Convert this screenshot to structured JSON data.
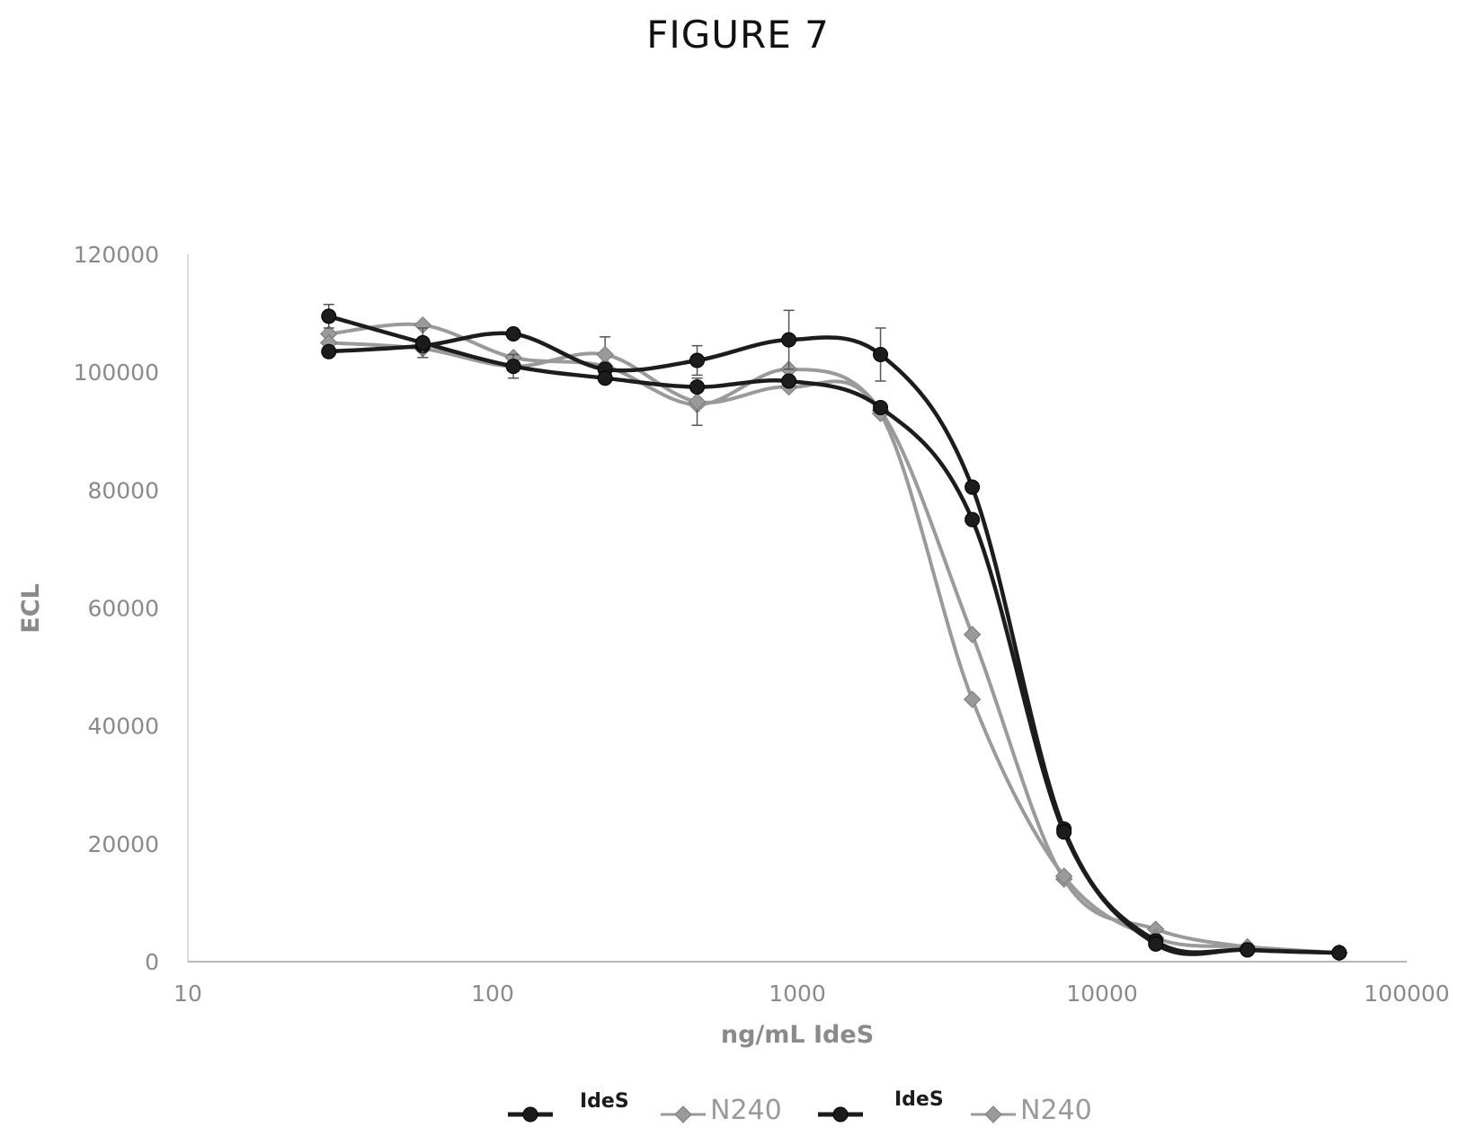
{
  "figure": {
    "title": "FIGURE 7"
  },
  "chart_data": {
    "type": "line",
    "title": "FIGURE 7",
    "xlabel": "ng/mL IdeS",
    "ylabel": "ECL",
    "xscale": "log",
    "xlim": [
      10,
      100000
    ],
    "ylim": [
      0,
      120000
    ],
    "x_ticks": [
      10,
      100,
      1000,
      10000,
      100000
    ],
    "x_tick_labels": [
      "10",
      "100",
      "1000",
      "10000",
      "100000"
    ],
    "y_ticks": [
      0,
      20000,
      40000,
      60000,
      80000,
      100000,
      120000
    ],
    "y_tick_labels": [
      "0",
      "20000",
      "40000",
      "60000",
      "80000",
      "100000",
      "120000"
    ],
    "grid": false,
    "legend_position": "bottom",
    "series": [
      {
        "name": "IdeS",
        "color": "#1c1c1c",
        "marker": "circle",
        "x": [
          29,
          59,
          117,
          234,
          469,
          938,
          1875,
          3750,
          7500,
          15000,
          30000,
          60000
        ],
        "y": [
          103500,
          104500,
          106500,
          100500,
          102000,
          105500,
          103000,
          80500,
          22500,
          3500,
          2000,
          1500
        ],
        "error": [
          0,
          0,
          0,
          0,
          2500,
          5000,
          4500,
          0,
          0,
          0,
          0,
          0
        ]
      },
      {
        "name": "N240",
        "color": "#9a9a9a",
        "marker": "diamond",
        "x": [
          29,
          59,
          117,
          234,
          469,
          938,
          1875,
          3750,
          7500,
          15000,
          30000,
          60000
        ],
        "y": [
          106500,
          108000,
          102500,
          101000,
          94500,
          100500,
          93500,
          55500,
          14000,
          5500,
          2500,
          1500
        ],
        "error": [
          0,
          0,
          0,
          0,
          0,
          0,
          0,
          0,
          0,
          0,
          0,
          0
        ]
      },
      {
        "name": "IdeS",
        "color": "#1c1c1c",
        "marker": "circle",
        "x": [
          29,
          59,
          117,
          234,
          469,
          938,
          1875,
          3750,
          7500,
          15000,
          30000,
          60000
        ],
        "y": [
          109500,
          105000,
          101000,
          99000,
          97500,
          98500,
          94000,
          75000,
          22000,
          3000,
          2000,
          1500
        ],
        "error": [
          2000,
          2500,
          0,
          0,
          0,
          0,
          0,
          0,
          0,
          0,
          0,
          0
        ]
      },
      {
        "name": "N240",
        "color": "#9a9a9a",
        "marker": "diamond",
        "x": [
          29,
          59,
          117,
          234,
          469,
          938,
          1875,
          3750,
          7500,
          15000,
          30000,
          60000
        ],
        "y": [
          105000,
          104000,
          101000,
          103000,
          95000,
          97500,
          93000,
          44500,
          14500,
          4000,
          2500,
          1500
        ],
        "error": [
          0,
          0,
          2000,
          3000,
          4000,
          0,
          0,
          0,
          0,
          0,
          0,
          0
        ]
      }
    ]
  }
}
